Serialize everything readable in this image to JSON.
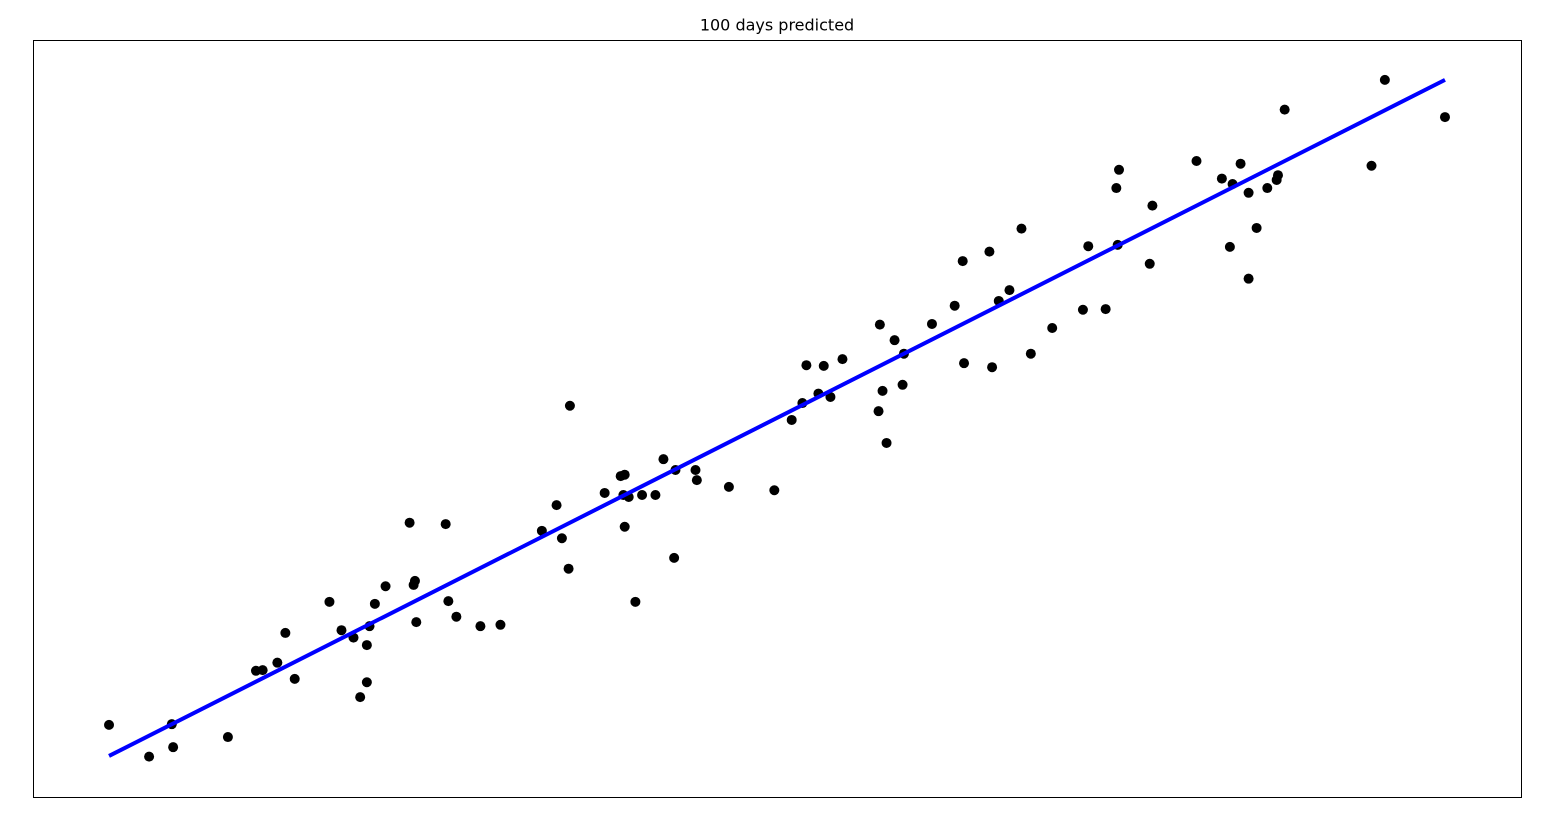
{
  "chart_data": {
    "type": "scatter",
    "title": "100 days predicted",
    "xlim": [
      -5.69,
      105.69
    ],
    "ylim": [
      -6.07,
      105.9
    ],
    "series": [
      {
        "type": "scatter",
        "color": "#000000",
        "x": [
          0,
          3.0,
          4.7,
          4.8,
          8.9,
          11.0,
          11.5,
          12.6,
          13.2,
          13.9,
          16.5,
          17.4,
          18.3,
          18.8,
          19.3,
          19.3,
          19.5,
          19.9,
          20.7,
          22.5,
          22.8,
          22.9,
          23.0,
          25.2,
          25.4,
          26.0,
          27.8,
          29.3,
          32.4,
          33.5,
          33.9,
          34.4,
          34.5,
          37.1,
          38.3,
          38.6,
          38.5,
          38.9,
          38.6,
          39.4,
          39.9,
          40.9,
          41.5,
          42.4,
          42.3,
          43.9,
          44.0,
          46.4,
          49.8,
          51.1,
          51.9,
          52.2,
          53.1,
          53.5,
          54.0,
          54.9,
          57.6,
          57.7,
          57.9,
          58.2,
          58.8,
          59.4,
          59.5,
          61.6,
          63.3,
          63.9,
          64.0,
          65.9,
          66.1,
          66.6,
          67.4,
          68.3,
          69.0,
          70.6,
          72.9,
          73.3,
          74.6,
          75.4,
          75.6,
          75.5,
          77.9,
          78.1,
          81.4,
          83.3,
          83.9,
          84.1,
          84.7,
          85.3,
          85.3,
          85.9,
          86.7,
          87.4,
          87.5,
          88.0,
          94.5,
          95.5,
          100.0
        ],
        "values": [
          4.6,
          -0.1,
          4.7,
          1.3,
          2.8,
          12.6,
          12.7,
          13.8,
          18.2,
          11.4,
          22.8,
          18.6,
          17.5,
          8.7,
          16.4,
          10.9,
          19.2,
          22.5,
          25.1,
          34.5,
          25.3,
          25.9,
          19.8,
          34.3,
          22.9,
          20.6,
          19.2,
          19.4,
          33.3,
          37.1,
          32.2,
          27.7,
          51.8,
          38.9,
          41.4,
          41.6,
          38.6,
          38.3,
          33.9,
          22.8,
          38.6,
          38.6,
          43.9,
          42.3,
          29.3,
          42.3,
          40.8,
          39.8,
          39.3,
          49.7,
          52.2,
          57.8,
          53.6,
          57.7,
          53.1,
          58.7,
          51.0,
          63.8,
          54.0,
          46.3,
          61.5,
          54.9,
          59.5,
          63.9,
          66.6,
          73.2,
          58.1,
          74.6,
          57.5,
          67.3,
          68.9,
          78.0,
          59.5,
          63.3,
          66.0,
          75.4,
          66.1,
          84.0,
          86.7,
          75.6,
          72.8,
          81.4,
          88.0,
          85.4,
          75.3,
          84.6,
          87.6,
          83.3,
          70.6,
          78.1,
          84.0,
          85.2,
          85.9,
          95.6,
          87.3,
          100.0,
          94.5
        ]
      },
      {
        "type": "line",
        "color": "#0000ff",
        "x": [
          0,
          100
        ],
        "values": [
          0,
          100
        ]
      }
    ]
  }
}
